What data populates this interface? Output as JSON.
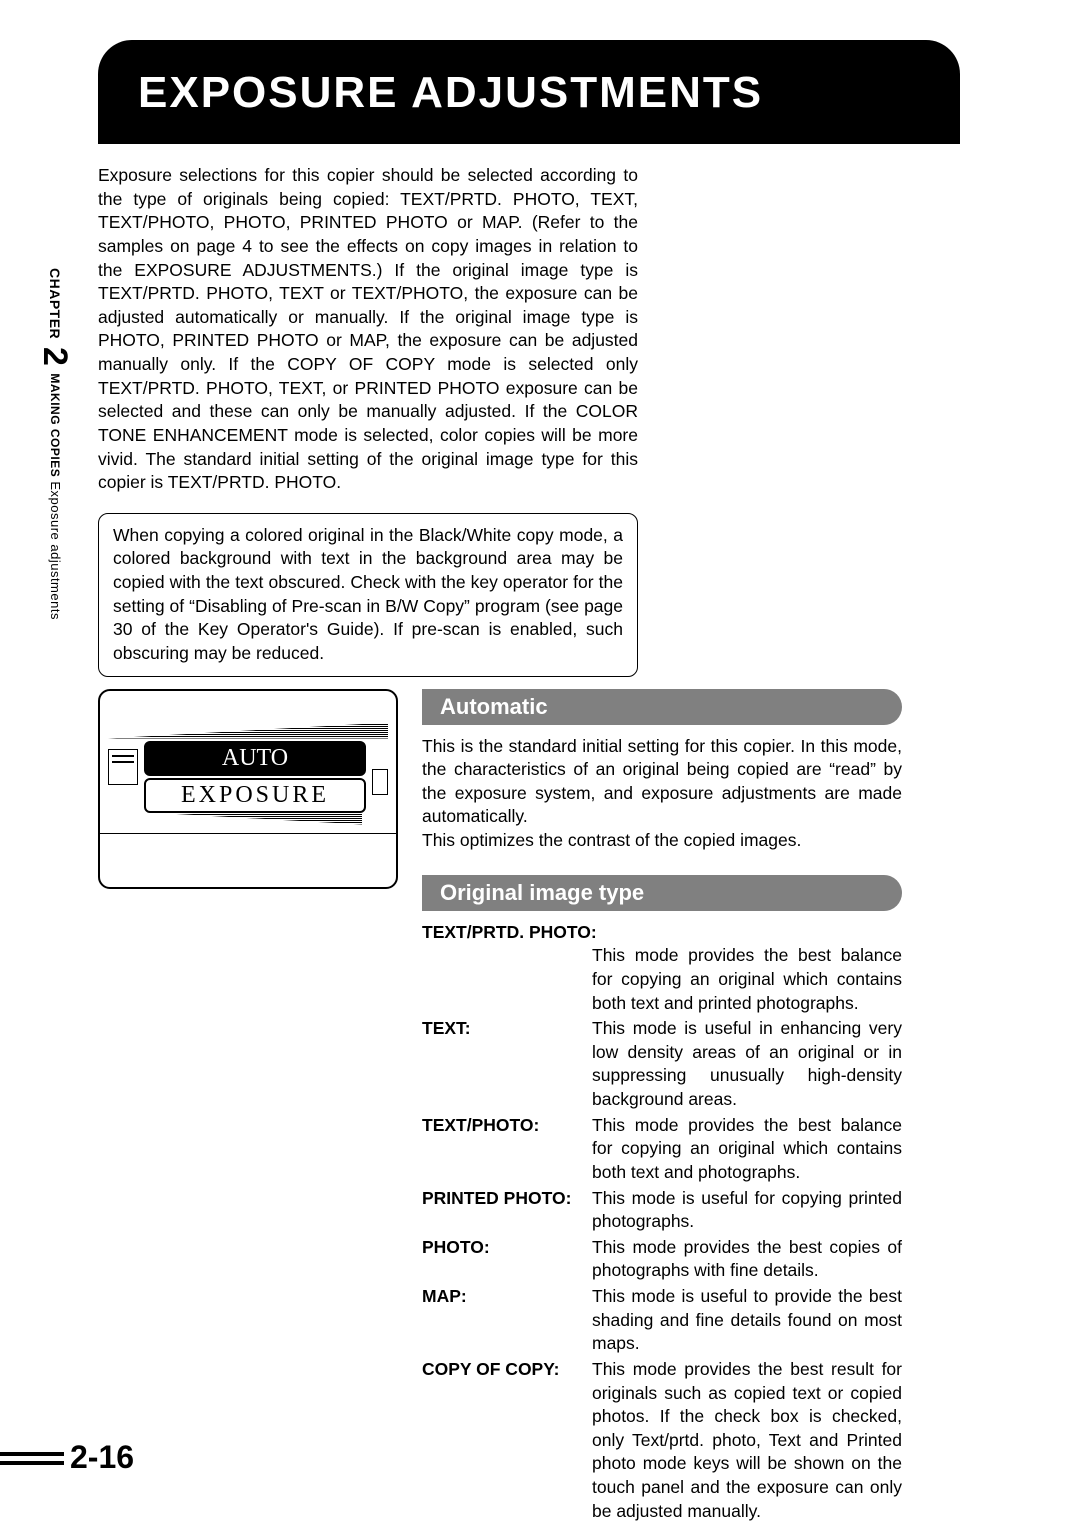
{
  "title": "EXPOSURE ADJUSTMENTS",
  "intro": "Exposure selections for this copier should be selected according to the type of originals being copied: TEXT/PRTD. PHOTO, TEXT, TEXT/PHOTO, PHOTO, PRINTED PHOTO or MAP. (Refer to the samples on page 4 to see the effects on copy images in relation to the EXPOSURE ADJUSTMENTS.) If the original image type is TEXT/PRTD. PHOTO, TEXT or TEXT/PHOTO, the exposure can be adjusted automatically or manually. If the original image type is PHOTO, PRINTED PHOTO or MAP, the exposure can be adjusted manually only. If the COPY OF COPY mode is selected only TEXT/PRTD. PHOTO, TEXT, or PRINTED PHOTO exposure can be selected and these can only be manually adjusted. If the COLOR TONE ENHANCEMENT mode is selected, color copies will be more vivid. The standard initial setting of the original image type for this copier is TEXT/PRTD. PHOTO.",
  "note": "When copying a colored original in the Black/White copy mode, a colored background with text in the background area may be copied with the text obscured. Check with the key operator for the setting of “Disabling of Pre-scan in B/W Copy” program (see page 30 of the Key Operator's Guide). If pre-scan is enabled, such obscuring may be reduced.",
  "panel": {
    "auto": "AUTO",
    "exposure": "EXPOSURE"
  },
  "sections": {
    "automatic": {
      "heading": "Automatic",
      "body": "This is the standard initial setting for this copier. In this mode, the characteristics of an original being copied are “read” by the exposure system, and exposure adjustments are made automatically.\nThis optimizes the contrast of the copied images."
    },
    "original": {
      "heading": "Original image type",
      "first_label": "TEXT/PRTD. PHOTO:",
      "first_desc": "This mode provides the best balance for copying an original which contains both text and printed photographs.",
      "modes": [
        {
          "label": "TEXT:",
          "desc": "This mode is useful in enhancing very low density areas of an original or in suppressing unusually high-density background areas."
        },
        {
          "label": "TEXT/PHOTO:",
          "desc": "This mode provides the best balance for copying an original which contains both text and photographs."
        },
        {
          "label": "PRINTED PHOTO:",
          "desc": "This mode is useful for copying printed photographs."
        },
        {
          "label": "PHOTO:",
          "desc": "This mode provides the best copies of photographs with fine details."
        },
        {
          "label": "MAP:",
          "desc": "This mode is useful to provide the best shading and fine details found on most maps."
        },
        {
          "label": "COPY OF COPY:",
          "desc": "This mode provides the best result for originals such as copied text or copied photos. If the check box is checked, only Text/prtd. photo, Text and Printed photo mode keys will be shown on the touch panel and the exposure can only be adjusted manually."
        }
      ]
    }
  },
  "sidebar": {
    "chapter": "CHAPTER",
    "num": "2",
    "section": "MAKING COPIES",
    "topic": " Exposure adjustments"
  },
  "page_number": "2-16",
  "colors": {
    "banner_bg": "#000000",
    "banner_fg": "#ffffff",
    "section_bg": "#808080",
    "section_fg": "#ffffff",
    "text": "#000000",
    "page_bg": "#ffffff"
  }
}
